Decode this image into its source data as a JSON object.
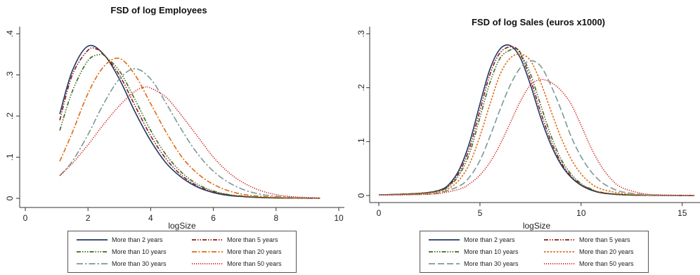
{
  "chart_data": [
    {
      "type": "line",
      "title": "FSD of log Employees",
      "xlabel": "logSize",
      "ylabel": "",
      "xlim": [
        0,
        10
      ],
      "ylim": [
        0,
        0.4
      ],
      "xticks": [
        0,
        2,
        4,
        6,
        8,
        10
      ],
      "xtick_labels": [
        "0",
        "2",
        "4",
        "6",
        "8",
        "10"
      ],
      "yticks": [
        0,
        0.1,
        0.2,
        0.3,
        0.4
      ],
      "ytick_labels": [
        "0",
        ".1",
        ".2",
        ".3",
        ".4"
      ],
      "grid": false,
      "legend_position": "bottom",
      "series": [
        {
          "name": "More than 2 years",
          "color": "#1f3864",
          "dash": "solid",
          "x": [
            1.1,
            1.5,
            2.0,
            2.5,
            3.0,
            3.5,
            4.0,
            4.5,
            5.0,
            5.5,
            6.0,
            6.5,
            7.0,
            7.5,
            8.0,
            8.5,
            9.0,
            9.4
          ],
          "y": [
            0.205,
            0.31,
            0.37,
            0.35,
            0.29,
            0.21,
            0.14,
            0.085,
            0.05,
            0.027,
            0.014,
            0.007,
            0.004,
            0.002,
            0.001,
            0.0005,
            0.0003,
            0.0002
          ]
        },
        {
          "name": "More than 5 years",
          "color": "#8b1a1a",
          "dash": "6,2,1.5,2,1.5,2",
          "x": [
            1.1,
            1.5,
            2.0,
            2.3,
            2.5,
            3.0,
            3.5,
            4.0,
            4.5,
            5.0,
            5.5,
            6.0,
            6.5,
            7.0,
            7.5,
            8.0,
            8.5,
            9.0,
            9.4
          ],
          "y": [
            0.19,
            0.3,
            0.36,
            0.362,
            0.35,
            0.3,
            0.225,
            0.152,
            0.095,
            0.055,
            0.03,
            0.016,
            0.008,
            0.004,
            0.002,
            0.001,
            0.0006,
            0.0003,
            0.0002
          ]
        },
        {
          "name": "More than 10 years",
          "color": "#3d6b1f",
          "dash": "6,2,1.5,2,1.5,2,1.5,2",
          "x": [
            1.1,
            1.5,
            2.0,
            2.4,
            2.5,
            3.0,
            3.5,
            4.0,
            4.5,
            5.0,
            5.5,
            6.0,
            6.5,
            7.0,
            7.5,
            8.0,
            8.5,
            9.0,
            9.4
          ],
          "y": [
            0.165,
            0.26,
            0.335,
            0.35,
            0.348,
            0.31,
            0.24,
            0.165,
            0.105,
            0.062,
            0.034,
            0.018,
            0.009,
            0.005,
            0.0025,
            0.0012,
            0.0007,
            0.0004,
            0.0002
          ]
        },
        {
          "name": "More than 20 years",
          "color": "#e06a10",
          "dash": "7,2.5,2,2.5",
          "x": [
            1.1,
            1.5,
            2.0,
            2.5,
            3.0,
            3.5,
            4.0,
            4.5,
            5.0,
            5.5,
            6.0,
            6.5,
            7.0,
            7.5,
            8.0,
            8.5,
            9.0,
            9.4
          ],
          "y": [
            0.09,
            0.16,
            0.255,
            0.32,
            0.34,
            0.3,
            0.23,
            0.16,
            0.1,
            0.06,
            0.034,
            0.018,
            0.009,
            0.005,
            0.0025,
            0.0012,
            0.0006,
            0.0003
          ]
        },
        {
          "name": "More than 30 years",
          "color": "#7a9a96",
          "dash": "9,3,2.5,3",
          "x": [
            1.1,
            1.5,
            2.0,
            2.5,
            3.0,
            3.5,
            4.0,
            4.5,
            5.0,
            5.5,
            6.0,
            6.5,
            7.0,
            7.5,
            8.0,
            8.5,
            9.0,
            9.4
          ],
          "y": [
            0.055,
            0.09,
            0.155,
            0.23,
            0.29,
            0.315,
            0.29,
            0.23,
            0.165,
            0.108,
            0.066,
            0.038,
            0.02,
            0.01,
            0.005,
            0.0025,
            0.0012,
            0.0006
          ]
        },
        {
          "name": "More than 50 years",
          "color": "#d01c1c",
          "dash": "1.2,1.8",
          "x": [
            1.1,
            1.5,
            2.0,
            2.5,
            3.0,
            3.5,
            3.8,
            4.0,
            4.5,
            5.0,
            5.5,
            6.0,
            6.5,
            7.0,
            7.5,
            8.0,
            8.5,
            9.0,
            9.4
          ],
          "y": [
            0.055,
            0.085,
            0.13,
            0.18,
            0.225,
            0.26,
            0.27,
            0.268,
            0.245,
            0.2,
            0.15,
            0.1,
            0.062,
            0.036,
            0.019,
            0.009,
            0.004,
            0.002,
            0.001
          ]
        }
      ]
    },
    {
      "type": "line",
      "title": "FSD of log Sales (euros x1000)",
      "xlabel": "logSize",
      "ylabel": "",
      "xlim": [
        0,
        15.6
      ],
      "ylim": [
        0,
        0.3
      ],
      "xticks": [
        0,
        5,
        10,
        15
      ],
      "xtick_labels": [
        "0",
        "5",
        "10",
        "15"
      ],
      "yticks": [
        0,
        0.1,
        0.2,
        0.3
      ],
      "ytick_labels": [
        "0",
        ".1",
        ".2",
        ".3"
      ],
      "grid": false,
      "legend_position": "bottom",
      "series": [
        {
          "name": "More than 2 years",
          "color": "#1f3864",
          "dash": "solid",
          "x": [
            0,
            2,
            3,
            3.5,
            4,
            4.5,
            5,
            5.5,
            6,
            6.5,
            7,
            7.5,
            8,
            8.5,
            9,
            9.5,
            10,
            10.5,
            11,
            12,
            13,
            14,
            15.6
          ],
          "y": [
            0.001,
            0.004,
            0.01,
            0.022,
            0.05,
            0.1,
            0.17,
            0.235,
            0.272,
            0.278,
            0.255,
            0.205,
            0.145,
            0.095,
            0.058,
            0.034,
            0.019,
            0.01,
            0.005,
            0.0015,
            0.0005,
            0.0002,
            0.0001
          ]
        },
        {
          "name": "More than 5 years",
          "color": "#8b1a1a",
          "dash": "6,2,1.5,2,1.5,2",
          "x": [
            0,
            2,
            3,
            3.5,
            4,
            4.5,
            5,
            5.5,
            6,
            6.6,
            7,
            7.5,
            8,
            8.5,
            9,
            9.5,
            10,
            10.5,
            11,
            12,
            13,
            14,
            15.6
          ],
          "y": [
            0.001,
            0.004,
            0.009,
            0.02,
            0.045,
            0.09,
            0.158,
            0.225,
            0.265,
            0.276,
            0.262,
            0.215,
            0.155,
            0.102,
            0.062,
            0.036,
            0.02,
            0.011,
            0.005,
            0.0015,
            0.0005,
            0.0002,
            0.0001
          ]
        },
        {
          "name": "More than 10 years",
          "color": "#3d6b1f",
          "dash": "6,2,1.5,2,1.5,2,1.5,2",
          "x": [
            0,
            2,
            3,
            3.5,
            4,
            4.5,
            5,
            5.5,
            6,
            6.5,
            6.8,
            7,
            7.5,
            8,
            8.5,
            9,
            9.5,
            10,
            10.5,
            11,
            12,
            13,
            14,
            15.6
          ],
          "y": [
            0.001,
            0.004,
            0.009,
            0.018,
            0.04,
            0.08,
            0.145,
            0.21,
            0.255,
            0.27,
            0.272,
            0.265,
            0.225,
            0.168,
            0.112,
            0.068,
            0.04,
            0.022,
            0.012,
            0.006,
            0.0018,
            0.0005,
            0.0002,
            0.0001
          ]
        },
        {
          "name": "More than 20 years",
          "color": "#e06a10",
          "dash": "2.5,2",
          "x": [
            0,
            2,
            3,
            3.5,
            4,
            4.5,
            5,
            5.5,
            6,
            6.5,
            7,
            7.5,
            8,
            8.5,
            9,
            9.5,
            10,
            10.5,
            11,
            12,
            13,
            14,
            15.6
          ],
          "y": [
            0.001,
            0.003,
            0.007,
            0.014,
            0.03,
            0.06,
            0.11,
            0.17,
            0.225,
            0.255,
            0.262,
            0.25,
            0.21,
            0.158,
            0.108,
            0.068,
            0.04,
            0.022,
            0.012,
            0.004,
            0.0012,
            0.0004,
            0.0001
          ]
        },
        {
          "name": "More than 30 years",
          "color": "#7a9a96",
          "dash": "9,4",
          "x": [
            0,
            2,
            3,
            4,
            4.5,
            5,
            5.5,
            6,
            6.5,
            7,
            7.5,
            8,
            8.5,
            9,
            9.5,
            10,
            10.5,
            11,
            11.5,
            12,
            13,
            14,
            15.6
          ],
          "y": [
            0.001,
            0.002,
            0.005,
            0.018,
            0.035,
            0.065,
            0.11,
            0.16,
            0.205,
            0.237,
            0.25,
            0.24,
            0.205,
            0.16,
            0.11,
            0.072,
            0.044,
            0.025,
            0.014,
            0.007,
            0.002,
            0.0006,
            0.0002
          ]
        },
        {
          "name": "More than 50 years",
          "color": "#d01c1c",
          "dash": "1.2,1.8",
          "x": [
            0,
            2,
            3,
            4,
            4.5,
            5,
            5.5,
            6,
            6.5,
            7,
            7.5,
            8,
            8.5,
            9,
            9.5,
            10,
            10.5,
            11,
            11.5,
            12,
            13,
            14,
            15.6
          ],
          "y": [
            0.001,
            0.002,
            0.004,
            0.012,
            0.022,
            0.038,
            0.062,
            0.095,
            0.135,
            0.175,
            0.205,
            0.215,
            0.21,
            0.195,
            0.17,
            0.13,
            0.088,
            0.054,
            0.03,
            0.015,
            0.004,
            0.001,
            0.0003
          ]
        }
      ]
    }
  ]
}
